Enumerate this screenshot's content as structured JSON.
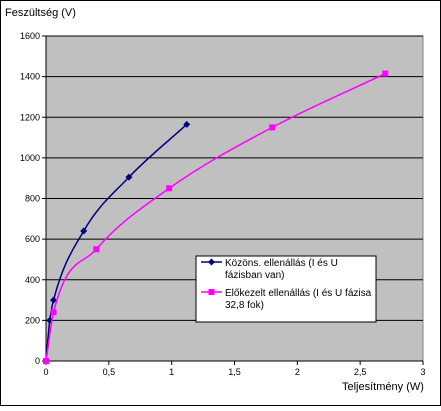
{
  "chart_data": {
    "type": "line",
    "title": "",
    "xlabel": "Teljesítmény (W)",
    "ylabel": "Feszültség (V)",
    "xlim": [
      0,
      3
    ],
    "ylim": [
      0,
      1600
    ],
    "x_ticks": [
      0,
      0.5,
      1,
      1.5,
      2,
      2.5,
      3
    ],
    "x_tick_labels": [
      "0",
      "0,5",
      "1",
      "1,5",
      "2",
      "2,5",
      "3"
    ],
    "y_ticks": [
      0,
      200,
      400,
      600,
      800,
      1000,
      1200,
      1400,
      1600
    ],
    "y_tick_labels": [
      "0",
      "200",
      "400",
      "600",
      "800",
      "1000",
      "1200",
      "1400",
      "1600"
    ],
    "grid": "horizontal",
    "plot_background": "#c0c0c0",
    "legend_position": "right-middle",
    "series": [
      {
        "name": "Közöns. ellenállás (I és U fázisban van)",
        "legend_lines": [
          "Közöns. ellenállás (I és U",
          "fázisban van)"
        ],
        "color": "#000080",
        "marker": "diamond",
        "x": [
          0,
          0.03,
          0.06,
          0.3,
          0.66,
          1.12
        ],
        "y": [
          0,
          200,
          300,
          640,
          905,
          1165
        ]
      },
      {
        "name": "Előkezelt ellenállás (I és U fázisa 32,8 fok)",
        "legend_lines": [
          "Előkezelt ellenállás (I és U fázisa",
          "32,8 fok)"
        ],
        "color": "#ff00ff",
        "marker": "square",
        "x": [
          0,
          0.06,
          0.4,
          0.98,
          1.8,
          2.7
        ],
        "y": [
          0,
          240,
          550,
          850,
          1150,
          1415
        ]
      }
    ]
  }
}
